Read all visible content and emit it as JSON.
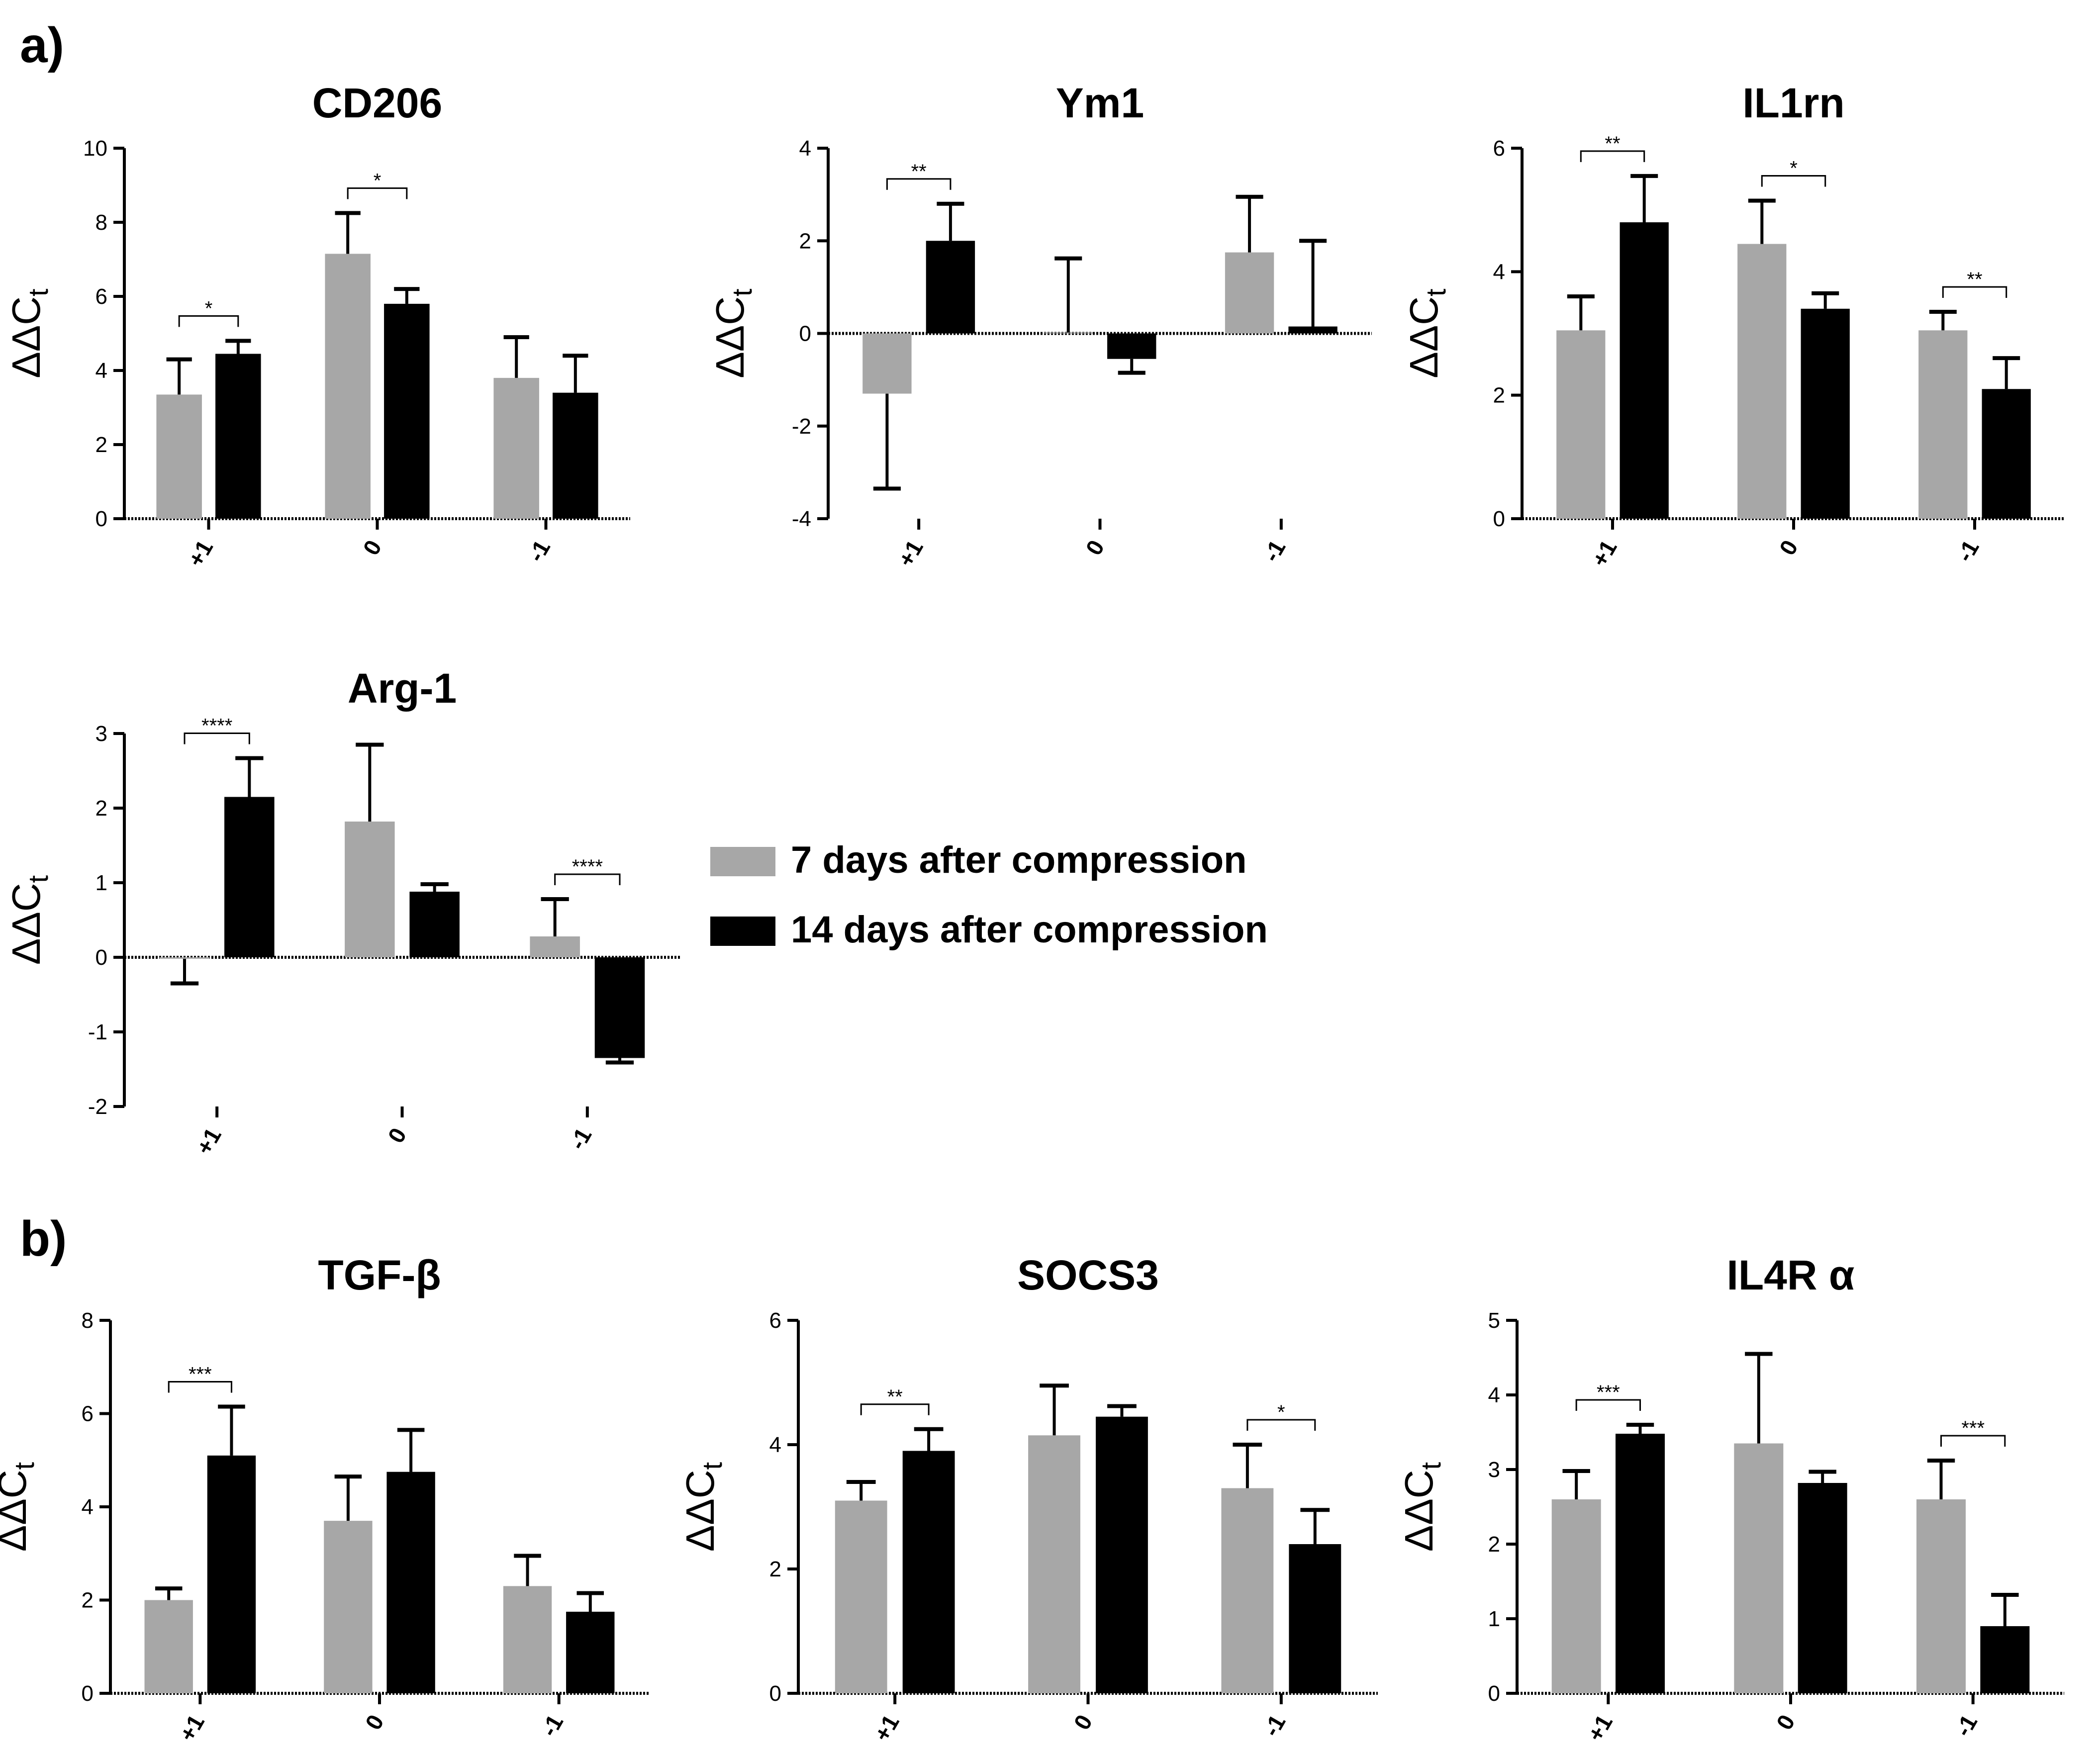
{
  "figure": {
    "panel_labels": {
      "a": "a)",
      "b": "b)"
    },
    "legend": [
      {
        "label": "7 days after compression",
        "color": "#a7a7a7"
      },
      {
        "label": "14 days after compression",
        "color": "#000000"
      }
    ]
  },
  "chart_data": [
    {
      "type": "bar",
      "title": "CD206",
      "ylabel": "ΔΔCt",
      "categories": [
        "+1",
        "0",
        "-1"
      ],
      "ylim": [
        0,
        10
      ],
      "yticks": [
        0,
        2,
        4,
        6,
        8,
        10
      ],
      "series": [
        {
          "name": "7 days after compression",
          "color": "#a7a7a7",
          "values": [
            3.35,
            7.15,
            3.8
          ],
          "errors": [
            0.95,
            1.1,
            1.1
          ]
        },
        {
          "name": "14 days after compression",
          "color": "#000000",
          "values": [
            4.45,
            5.8,
            3.4
          ],
          "errors": [
            0.35,
            0.4,
            1.0
          ]
        }
      ],
      "significance": [
        {
          "category": "+1",
          "label": "*"
        },
        {
          "category": "0",
          "label": "*"
        }
      ]
    },
    {
      "type": "bar",
      "title": "Ym1",
      "ylabel": "ΔΔCt",
      "categories": [
        "+1",
        "0",
        "-1"
      ],
      "ylim": [
        -4,
        4
      ],
      "yticks": [
        -4,
        -2,
        0,
        2,
        4
      ],
      "series": [
        {
          "name": "7 days after compression",
          "color": "#a7a7a7",
          "values": [
            -1.3,
            0.02,
            1.75
          ],
          "errors": [
            2.05,
            1.6,
            1.2
          ]
        },
        {
          "name": "14 days after compression",
          "color": "#000000",
          "values": [
            2.0,
            -0.55,
            0.15
          ],
          "errors": [
            0.8,
            0.3,
            1.85
          ]
        }
      ],
      "significance": [
        {
          "category": "+1",
          "label": "**"
        }
      ]
    },
    {
      "type": "bar",
      "title": "IL1rn",
      "ylabel": "ΔΔCt",
      "categories": [
        "+1",
        "0",
        "-1"
      ],
      "ylim": [
        0,
        6
      ],
      "yticks": [
        0,
        2,
        4,
        6
      ],
      "series": [
        {
          "name": "7 days after compression",
          "color": "#a7a7a7",
          "values": [
            3.05,
            4.45,
            3.05
          ],
          "errors": [
            0.55,
            0.7,
            0.3
          ]
        },
        {
          "name": "14 days after compression",
          "color": "#000000",
          "values": [
            4.8,
            3.4,
            2.1
          ],
          "errors": [
            0.75,
            0.25,
            0.5
          ]
        }
      ],
      "significance": [
        {
          "category": "+1",
          "label": "**"
        },
        {
          "category": "0",
          "label": "*"
        },
        {
          "category": "-1",
          "label": "**"
        }
      ]
    },
    {
      "type": "bar",
      "title": "Arg-1",
      "ylabel": "ΔΔCt",
      "categories": [
        "+1",
        "0",
        "-1"
      ],
      "ylim": [
        -2,
        3
      ],
      "yticks": [
        -2,
        -1,
        0,
        1,
        2,
        3
      ],
      "series": [
        {
          "name": "7 days after compression",
          "color": "#a7a7a7",
          "values": [
            -0.02,
            1.82,
            0.28
          ],
          "errors": [
            0.33,
            1.03,
            0.5
          ]
        },
        {
          "name": "14 days after compression",
          "color": "#000000",
          "values": [
            2.15,
            0.88,
            -1.35
          ],
          "errors": [
            0.52,
            0.1,
            0.06
          ]
        }
      ],
      "significance": [
        {
          "category": "+1",
          "label": "****"
        },
        {
          "category": "-1",
          "label": "****"
        }
      ]
    },
    {
      "type": "bar",
      "title": "TGF-β",
      "ylabel": "ΔΔCt",
      "categories": [
        "+1",
        "0",
        "-1"
      ],
      "ylim": [
        0,
        8
      ],
      "yticks": [
        0,
        2,
        4,
        6,
        8
      ],
      "series": [
        {
          "name": "7 days after compression",
          "color": "#a7a7a7",
          "values": [
            2.0,
            3.7,
            2.3
          ],
          "errors": [
            0.25,
            0.95,
            0.65
          ]
        },
        {
          "name": "14 days after compression",
          "color": "#000000",
          "values": [
            5.1,
            4.75,
            1.75
          ],
          "errors": [
            1.05,
            0.9,
            0.4
          ]
        }
      ],
      "significance": [
        {
          "category": "+1",
          "label": "***"
        }
      ]
    },
    {
      "type": "bar",
      "title": "SOCS3",
      "ylabel": "ΔΔCt",
      "categories": [
        "+1",
        "0",
        "-1"
      ],
      "ylim": [
        0,
        6
      ],
      "yticks": [
        0,
        2,
        4,
        6
      ],
      "series": [
        {
          "name": "7 days after compression",
          "color": "#a7a7a7",
          "values": [
            3.1,
            4.15,
            3.3
          ],
          "errors": [
            0.3,
            0.8,
            0.7
          ]
        },
        {
          "name": "14 days after compression",
          "color": "#000000",
          "values": [
            3.9,
            4.45,
            2.4
          ],
          "errors": [
            0.35,
            0.17,
            0.55
          ]
        }
      ],
      "significance": [
        {
          "category": "+1",
          "label": "**"
        },
        {
          "category": "-1",
          "label": "*"
        }
      ]
    },
    {
      "type": "bar",
      "title": "IL4R α",
      "ylabel": "ΔΔCt",
      "categories": [
        "+1",
        "0",
        "-1"
      ],
      "ylim": [
        0,
        5
      ],
      "yticks": [
        0,
        1,
        2,
        3,
        4,
        5
      ],
      "series": [
        {
          "name": "7 days after compression",
          "color": "#a7a7a7",
          "values": [
            2.6,
            3.35,
            2.6
          ],
          "errors": [
            0.38,
            1.2,
            0.52
          ]
        },
        {
          "name": "14 days after compression",
          "color": "#000000",
          "values": [
            3.48,
            2.82,
            0.9
          ],
          "errors": [
            0.12,
            0.15,
            0.42
          ]
        }
      ],
      "significance": [
        {
          "category": "+1",
          "label": "***"
        },
        {
          "category": "-1",
          "label": "***"
        }
      ]
    }
  ]
}
